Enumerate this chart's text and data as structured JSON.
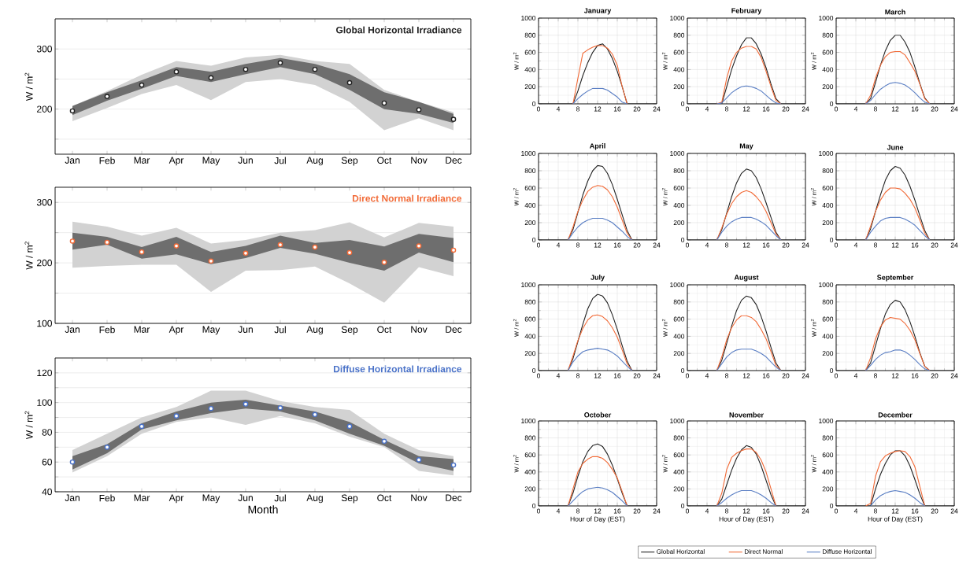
{
  "chart_data": [
    {
      "type": "scatter",
      "title": "Global Horizontal Irradiance",
      "ylabel": "W / m$^{2}$",
      "categories": [
        "Jan",
        "Feb",
        "Mar",
        "Apr",
        "May",
        "Jun",
        "Jul",
        "Aug",
        "Sep",
        "Oct",
        "Nov",
        "Dec"
      ],
      "ylim": [
        125,
        350
      ],
      "yticks": [
        {
          "value": 150,
          "label": null
        },
        200,
        {
          "value": 250,
          "label": null
        },
        300
      ],
      "grid": "y",
      "marker": "circle",
      "series": [
        {
          "color": "#d2d2d2",
          "values": [
            null,
            null,
            null,
            null,
            null,
            null,
            null,
            null,
            null,
            null,
            null,
            null
          ],
          "lower": [
            180,
            202,
            225,
            240,
            215,
            245,
            250,
            240,
            212,
            165,
            185,
            165
          ],
          "upper": [
            205,
            230,
            257,
            280,
            272,
            286,
            290,
            280,
            275,
            232,
            212,
            195
          ]
        },
        {
          "color": "#6e6e6e",
          "values": [
            null,
            null,
            null,
            null,
            null,
            null,
            null,
            null,
            null,
            null,
            null,
            null
          ],
          "lower": [
            190,
            214,
            234,
            255,
            245,
            258,
            270,
            258,
            232,
            200,
            192,
            177
          ],
          "upper": [
            205,
            228,
            248,
            270,
            262,
            275,
            285,
            275,
            258,
            228,
            212,
            192
          ]
        },
        {
          "color": "#222222",
          "values": [
            197,
            221,
            240,
            262,
            252,
            266,
            277,
            266,
            244,
            210,
            199,
            183
          ]
        }
      ]
    },
    {
      "type": "scatter",
      "title": "Direct Normal Irradiance",
      "ylabel": "W / m$^{2}$",
      "categories": [
        "Jan",
        "Feb",
        "Mar",
        "Apr",
        "May",
        "Jun",
        "Jul",
        "Aug",
        "Sep",
        "Oct",
        "Nov",
        "Dec"
      ],
      "ylim": [
        100,
        325
      ],
      "yticks": [
        100,
        {
          "value": 150,
          "label": null
        },
        200,
        {
          "value": 250,
          "label": null
        },
        300
      ],
      "grid": "y",
      "marker": "circle",
      "series": [
        {
          "color": "#d2d2d2",
          "values": [
            null,
            null,
            null,
            null,
            null,
            null,
            null,
            null,
            null,
            null,
            null,
            null
          ],
          "lower": [
            192,
            195,
            197,
            197,
            152,
            187,
            188,
            194,
            166,
            134,
            193,
            178
          ],
          "upper": [
            268,
            260,
            245,
            258,
            232,
            238,
            250,
            254,
            267,
            242,
            266,
            260
          ]
        },
        {
          "color": "#6e6e6e",
          "values": [
            null,
            null,
            null,
            null,
            null,
            null,
            null,
            null,
            null,
            null,
            null,
            null
          ],
          "lower": [
            222,
            230,
            207,
            214,
            198,
            208,
            225,
            215,
            200,
            187,
            217,
            201
          ],
          "upper": [
            250,
            243,
            226,
            243,
            218,
            228,
            245,
            233,
            238,
            227,
            248,
            241
          ]
        },
        {
          "color": "#f26b38",
          "values": [
            236,
            234,
            218,
            228,
            203,
            216,
            230,
            226,
            217,
            201,
            228,
            221
          ]
        }
      ]
    },
    {
      "type": "scatter",
      "title": "Diffuse Horizontal Irradiance",
      "xlabel": "Month",
      "ylabel": "W / m$^{2}$",
      "categories": [
        "Jan",
        "Feb",
        "Mar",
        "Apr",
        "May",
        "Jun",
        "Jul",
        "Aug",
        "Sep",
        "Oct",
        "Nov",
        "Dec"
      ],
      "ylim": [
        40,
        130
      ],
      "yticks": [
        40,
        {
          "value": 50,
          "label": null
        },
        60,
        {
          "value": 70,
          "label": null
        },
        80,
        {
          "value": 90,
          "label": null
        },
        100,
        {
          "value": 110,
          "label": null
        },
        120
      ],
      "grid": "y",
      "marker": "circle",
      "series": [
        {
          "color": "#d2d2d2",
          "values": [
            null,
            null,
            null,
            null,
            null,
            null,
            null,
            null,
            null,
            null,
            null,
            null
          ],
          "lower": [
            53,
            64,
            79,
            87,
            90,
            85,
            91,
            86,
            77,
            70,
            54,
            51
          ],
          "upper": [
            68,
            79,
            90,
            97,
            108,
            108,
            101,
            97,
            95,
            79,
            68,
            64
          ]
        },
        {
          "color": "#6e6e6e",
          "values": [
            null,
            null,
            null,
            null,
            null,
            null,
            null,
            null,
            null,
            null,
            null,
            null
          ],
          "lower": [
            55,
            66,
            82,
            88,
            93,
            96,
            94,
            88,
            79,
            71,
            59,
            54
          ],
          "upper": [
            64,
            72,
            86,
            94,
            100,
            102,
            98,
            94,
            87,
            75,
            64,
            62
          ]
        },
        {
          "color": "#4a72c8",
          "values": [
            60,
            70,
            84,
            91,
            96,
            99,
            96.5,
            92,
            84,
            74,
            61.5,
            58
          ]
        }
      ]
    },
    {
      "type": "line",
      "title": "January",
      "ylabel": "W / m$^{2}$",
      "x": [
        0,
        6,
        7,
        8,
        9,
        10,
        11,
        12,
        13,
        14,
        15,
        16,
        17,
        18,
        19,
        20,
        24
      ],
      "xlim": [
        0,
        24
      ],
      "xticks": [
        0,
        4,
        8,
        12,
        16,
        20,
        24
      ],
      "ylim": [
        0,
        1000
      ],
      "yticks": [
        0,
        200,
        400,
        600,
        800,
        1000
      ],
      "grid": true,
      "series": [
        {
          "color": "#222222",
          "values": [
            0,
            0,
            0,
            150,
            330,
            480,
            600,
            680,
            700,
            640,
            530,
            380,
            200,
            0,
            0,
            0,
            0
          ]
        },
        {
          "color": "#f26b38",
          "values": [
            null,
            null,
            0,
            300,
            590,
            630,
            660,
            680,
            680,
            650,
            580,
            450,
            200,
            0,
            null,
            null,
            null
          ]
        },
        {
          "color": "#5b7fc4",
          "values": [
            null,
            null,
            0,
            60,
            110,
            150,
            180,
            180,
            180,
            160,
            120,
            80,
            20,
            0,
            null,
            null,
            null
          ]
        }
      ]
    },
    {
      "type": "line",
      "title": "February",
      "ylabel": "W / m$^{2}$",
      "x": [
        0,
        6,
        7,
        8,
        9,
        10,
        11,
        12,
        13,
        14,
        15,
        16,
        17,
        18,
        19,
        20,
        24
      ],
      "xlim": [
        0,
        24
      ],
      "xticks": [
        0,
        4,
        8,
        12,
        16,
        20,
        24
      ],
      "ylim": [
        0,
        1000
      ],
      "yticks": [
        0,
        200,
        400,
        600,
        800,
        1000
      ],
      "grid": true,
      "series": [
        {
          "color": "#222222",
          "values": [
            0,
            0,
            0,
            200,
            400,
            560,
            690,
            770,
            770,
            700,
            580,
            420,
            230,
            60,
            0,
            0,
            0
          ]
        },
        {
          "color": "#f26b38",
          "values": [
            null,
            0,
            20,
            300,
            500,
            600,
            650,
            670,
            670,
            640,
            540,
            380,
            200,
            40,
            0,
            null,
            null
          ]
        },
        {
          "color": "#5b7fc4",
          "values": [
            null,
            0,
            10,
            70,
            130,
            170,
            200,
            210,
            200,
            180,
            150,
            100,
            50,
            10,
            0,
            null,
            null
          ]
        }
      ]
    },
    {
      "type": "line",
      "title": "March",
      "ylabel": "W / m$^{2}$",
      "x": [
        0,
        6,
        7,
        8,
        9,
        10,
        11,
        12,
        13,
        14,
        15,
        16,
        17,
        18,
        19,
        20,
        24
      ],
      "xlim": [
        0,
        24
      ],
      "xticks": [
        0,
        4,
        8,
        12,
        16,
        20,
        24
      ],
      "ylim": [
        0,
        1000
      ],
      "yticks": [
        0,
        200,
        400,
        600,
        800,
        1000
      ],
      "grid": true,
      "series": [
        {
          "color": "#222222",
          "values": [
            0,
            0,
            60,
            250,
            450,
            620,
            740,
            800,
            800,
            720,
            600,
            430,
            240,
            70,
            0,
            0,
            0
          ]
        },
        {
          "color": "#f26b38",
          "values": [
            null,
            0,
            100,
            300,
            450,
            550,
            600,
            610,
            610,
            570,
            480,
            380,
            230,
            60,
            0,
            null,
            null
          ]
        },
        {
          "color": "#5b7fc4",
          "values": [
            null,
            0,
            40,
            110,
            170,
            210,
            240,
            250,
            240,
            220,
            180,
            130,
            70,
            20,
            0,
            null,
            null
          ]
        }
      ]
    },
    {
      "type": "line",
      "title": "April",
      "ylabel": "W / m$^{2}$",
      "x": [
        0,
        6,
        7,
        8,
        9,
        10,
        11,
        12,
        13,
        14,
        15,
        16,
        17,
        18,
        19,
        20,
        24
      ],
      "xlim": [
        0,
        24
      ],
      "xticks": [
        0,
        4,
        8,
        12,
        16,
        20,
        24
      ],
      "ylim": [
        0,
        1000
      ],
      "yticks": [
        0,
        200,
        400,
        600,
        800,
        1000
      ],
      "grid": true,
      "series": [
        {
          "color": "#222222",
          "values": [
            0,
            0,
            120,
            320,
            520,
            680,
            800,
            860,
            850,
            770,
            640,
            470,
            290,
            110,
            0,
            0,
            0
          ]
        },
        {
          "color": "#f26b38",
          "values": [
            null,
            0,
            150,
            330,
            460,
            560,
            610,
            630,
            620,
            580,
            500,
            380,
            230,
            80,
            0,
            null,
            null
          ]
        },
        {
          "color": "#5b7fc4",
          "values": [
            null,
            0,
            80,
            150,
            200,
            230,
            250,
            250,
            250,
            230,
            200,
            150,
            100,
            40,
            0,
            null,
            null
          ]
        }
      ]
    },
    {
      "type": "line",
      "title": "May",
      "ylabel": "W / m$^{2}$",
      "x": [
        0,
        6,
        7,
        8,
        9,
        10,
        11,
        12,
        13,
        14,
        15,
        16,
        17,
        18,
        19,
        20,
        24
      ],
      "xlim": [
        0,
        24
      ],
      "xticks": [
        0,
        4,
        8,
        12,
        16,
        20,
        24
      ],
      "ylim": [
        0,
        1000
      ],
      "yticks": [
        0,
        200,
        400,
        600,
        800,
        1000
      ],
      "grid": true,
      "series": [
        {
          "color": "#222222",
          "values": [
            0,
            0,
            120,
            310,
            500,
            660,
            770,
            820,
            800,
            720,
            590,
            430,
            260,
            90,
            0,
            0,
            0
          ]
        },
        {
          "color": "#f26b38",
          "values": [
            null,
            0,
            140,
            300,
            420,
            500,
            550,
            570,
            550,
            500,
            430,
            330,
            200,
            70,
            0,
            null,
            null
          ]
        },
        {
          "color": "#5b7fc4",
          "values": [
            null,
            0,
            90,
            160,
            210,
            240,
            260,
            260,
            260,
            240,
            210,
            170,
            110,
            50,
            0,
            null,
            null
          ]
        }
      ]
    },
    {
      "type": "line",
      "title": "June",
      "ylabel": "W / m$^{2}$",
      "x": [
        0,
        6,
        7,
        8,
        9,
        10,
        11,
        12,
        13,
        14,
        15,
        16,
        17,
        18,
        19,
        20,
        24
      ],
      "xlim": [
        0,
        24
      ],
      "xticks": [
        0,
        4,
        8,
        12,
        16,
        20,
        24
      ],
      "ylim": [
        0,
        1000
      ],
      "yticks": [
        0,
        200,
        400,
        600,
        800,
        1000
      ],
      "grid": true,
      "series": [
        {
          "color": "#222222",
          "values": [
            0,
            0,
            130,
            330,
            520,
            690,
            800,
            850,
            830,
            750,
            620,
            460,
            280,
            110,
            0,
            0,
            0
          ]
        },
        {
          "color": "#f26b38",
          "values": [
            null,
            0,
            160,
            330,
            460,
            550,
            600,
            600,
            590,
            540,
            470,
            370,
            230,
            80,
            0,
            null,
            null
          ]
        },
        {
          "color": "#5b7fc4",
          "values": [
            null,
            0,
            90,
            160,
            220,
            250,
            260,
            260,
            260,
            240,
            210,
            170,
            110,
            50,
            0,
            null,
            null
          ]
        }
      ]
    },
    {
      "type": "line",
      "title": "July",
      "ylabel": "W / m$^{2}$",
      "x": [
        0,
        6,
        7,
        8,
        9,
        10,
        11,
        12,
        13,
        14,
        15,
        16,
        17,
        18,
        19,
        20,
        24
      ],
      "xlim": [
        0,
        24
      ],
      "xticks": [
        0,
        4,
        8,
        12,
        16,
        20,
        24
      ],
      "ylim": [
        0,
        1000
      ],
      "yticks": [
        0,
        200,
        400,
        600,
        800,
        1000
      ],
      "grid": true,
      "series": [
        {
          "color": "#222222",
          "values": [
            0,
            0,
            140,
            340,
            540,
            720,
            840,
            890,
            870,
            790,
            650,
            480,
            290,
            110,
            0,
            0,
            0
          ]
        },
        {
          "color": "#f26b38",
          "values": [
            null,
            0,
            170,
            350,
            490,
            590,
            640,
            650,
            630,
            580,
            500,
            390,
            240,
            80,
            0,
            null,
            null
          ]
        },
        {
          "color": "#5b7fc4",
          "values": [
            null,
            0,
            100,
            170,
            220,
            240,
            250,
            260,
            250,
            240,
            210,
            170,
            110,
            50,
            0,
            null,
            null
          ]
        }
      ]
    },
    {
      "type": "line",
      "title": "August",
      "ylabel": "W / m$^{2}$",
      "x": [
        0,
        6,
        7,
        8,
        9,
        10,
        11,
        12,
        13,
        14,
        15,
        16,
        17,
        18,
        19,
        20,
        24
      ],
      "xlim": [
        0,
        24
      ],
      "xticks": [
        0,
        4,
        8,
        12,
        16,
        20,
        24
      ],
      "ylim": [
        0,
        1000
      ],
      "yticks": [
        0,
        200,
        400,
        600,
        800,
        1000
      ],
      "grid": true,
      "series": [
        {
          "color": "#222222",
          "values": [
            0,
            0,
            120,
            320,
            520,
            700,
            820,
            870,
            850,
            770,
            630,
            460,
            270,
            90,
            0,
            0,
            0
          ]
        },
        {
          "color": "#f26b38",
          "values": [
            null,
            0,
            160,
            360,
            500,
            590,
            640,
            640,
            620,
            570,
            480,
            370,
            220,
            60,
            0,
            null,
            null
          ]
        },
        {
          "color": "#5b7fc4",
          "values": [
            null,
            0,
            80,
            160,
            210,
            240,
            250,
            250,
            250,
            230,
            200,
            160,
            100,
            40,
            0,
            null,
            null
          ]
        }
      ]
    },
    {
      "type": "line",
      "title": "September",
      "ylabel": "W / m$^{2}$",
      "x": [
        0,
        6,
        7,
        8,
        9,
        10,
        11,
        12,
        13,
        14,
        15,
        16,
        17,
        18,
        19,
        20,
        24
      ],
      "xlim": [
        0,
        24
      ],
      "xticks": [
        0,
        4,
        8,
        12,
        16,
        20,
        24
      ],
      "ylim": [
        0,
        1000
      ],
      "yticks": [
        0,
        200,
        400,
        600,
        800,
        1000
      ],
      "grid": true,
      "series": [
        {
          "color": "#222222",
          "values": [
            0,
            0,
            90,
            290,
            490,
            660,
            770,
            820,
            800,
            710,
            570,
            400,
            210,
            50,
            0,
            0,
            0
          ]
        },
        {
          "color": "#f26b38",
          "values": [
            null,
            0,
            150,
            370,
            510,
            590,
            620,
            610,
            600,
            550,
            470,
            360,
            200,
            50,
            0,
            null,
            null
          ]
        },
        {
          "color": "#5b7fc4",
          "values": [
            null,
            0,
            60,
            130,
            180,
            210,
            220,
            240,
            240,
            220,
            180,
            130,
            70,
            20,
            0,
            null,
            null
          ]
        }
      ]
    },
    {
      "type": "line",
      "title": "October",
      "xlabel": "Hour of Day (EST)",
      "ylabel": "W / m$^{2}$",
      "x": [
        0,
        6,
        7,
        8,
        9,
        10,
        11,
        12,
        13,
        14,
        15,
        16,
        17,
        18,
        19,
        20,
        24
      ],
      "xlim": [
        0,
        24
      ],
      "xticks": [
        0,
        4,
        8,
        12,
        16,
        20,
        24
      ],
      "ylim": [
        0,
        1000
      ],
      "yticks": [
        0,
        200,
        400,
        600,
        800,
        1000
      ],
      "grid": true,
      "series": [
        {
          "color": "#222222",
          "values": [
            0,
            0,
            150,
            350,
            520,
            640,
            710,
            730,
            700,
            610,
            480,
            320,
            150,
            0,
            0,
            0,
            0
          ]
        },
        {
          "color": "#f26b38",
          "values": [
            null,
            0,
            200,
            400,
            500,
            550,
            580,
            580,
            560,
            510,
            430,
            330,
            170,
            0,
            null,
            null,
            null
          ]
        },
        {
          "color": "#5b7fc4",
          "values": [
            null,
            0,
            60,
            120,
            170,
            200,
            210,
            220,
            210,
            190,
            160,
            110,
            60,
            0,
            null,
            null,
            null
          ]
        }
      ]
    },
    {
      "type": "line",
      "title": "November",
      "xlabel": "Hour of Day (EST)",
      "ylabel": "W / m$^{2}$",
      "x": [
        0,
        6,
        7,
        8,
        9,
        10,
        11,
        12,
        13,
        14,
        15,
        16,
        17,
        18,
        19,
        20,
        24
      ],
      "xlim": [
        0,
        24
      ],
      "xticks": [
        0,
        4,
        8,
        12,
        16,
        20,
        24
      ],
      "ylim": [
        0,
        1000
      ],
      "yticks": [
        0,
        200,
        400,
        600,
        800,
        1000
      ],
      "grid": true,
      "series": [
        {
          "color": "#222222",
          "values": [
            0,
            0,
            80,
            250,
            420,
            560,
            660,
            710,
            690,
            610,
            470,
            300,
            130,
            0,
            0,
            0,
            0
          ]
        },
        {
          "color": "#f26b38",
          "values": [
            null,
            0,
            150,
            430,
            570,
            620,
            650,
            670,
            670,
            630,
            540,
            400,
            200,
            0,
            null,
            null,
            null
          ]
        },
        {
          "color": "#5b7fc4",
          "values": [
            null,
            0,
            40,
            90,
            130,
            160,
            180,
            180,
            180,
            160,
            130,
            90,
            40,
            0,
            null,
            null,
            null
          ]
        }
      ]
    },
    {
      "type": "line",
      "title": "December",
      "xlabel": "Hour of Day (EST)",
      "ylabel": "W / m$^{2}$",
      "x": [
        0,
        6,
        7,
        8,
        9,
        10,
        11,
        12,
        13,
        14,
        15,
        16,
        17,
        18,
        19,
        20,
        24
      ],
      "xlim": [
        0,
        24
      ],
      "xticks": [
        0,
        4,
        8,
        12,
        16,
        20,
        24
      ],
      "ylim": [
        0,
        1000
      ],
      "yticks": [
        0,
        200,
        400,
        600,
        800,
        1000
      ],
      "grid": true,
      "legend": "bottom",
      "series": [
        {
          "name": "Global Horizontal",
          "color": "#222222",
          "values": [
            0,
            0,
            0,
            200,
            370,
            500,
            600,
            650,
            650,
            590,
            470,
            310,
            140,
            0,
            0,
            0,
            0
          ]
        },
        {
          "name": "Direct Normal",
          "color": "#f26b38",
          "values": [
            null,
            0,
            30,
            350,
            520,
            590,
            620,
            640,
            650,
            640,
            580,
            460,
            230,
            0,
            null,
            null,
            null
          ]
        },
        {
          "name": "Diffuse Horizontal",
          "color": "#5b7fc4",
          "values": [
            null,
            null,
            0,
            70,
            120,
            150,
            170,
            180,
            170,
            160,
            130,
            90,
            40,
            0,
            null,
            null,
            null
          ]
        }
      ]
    }
  ]
}
